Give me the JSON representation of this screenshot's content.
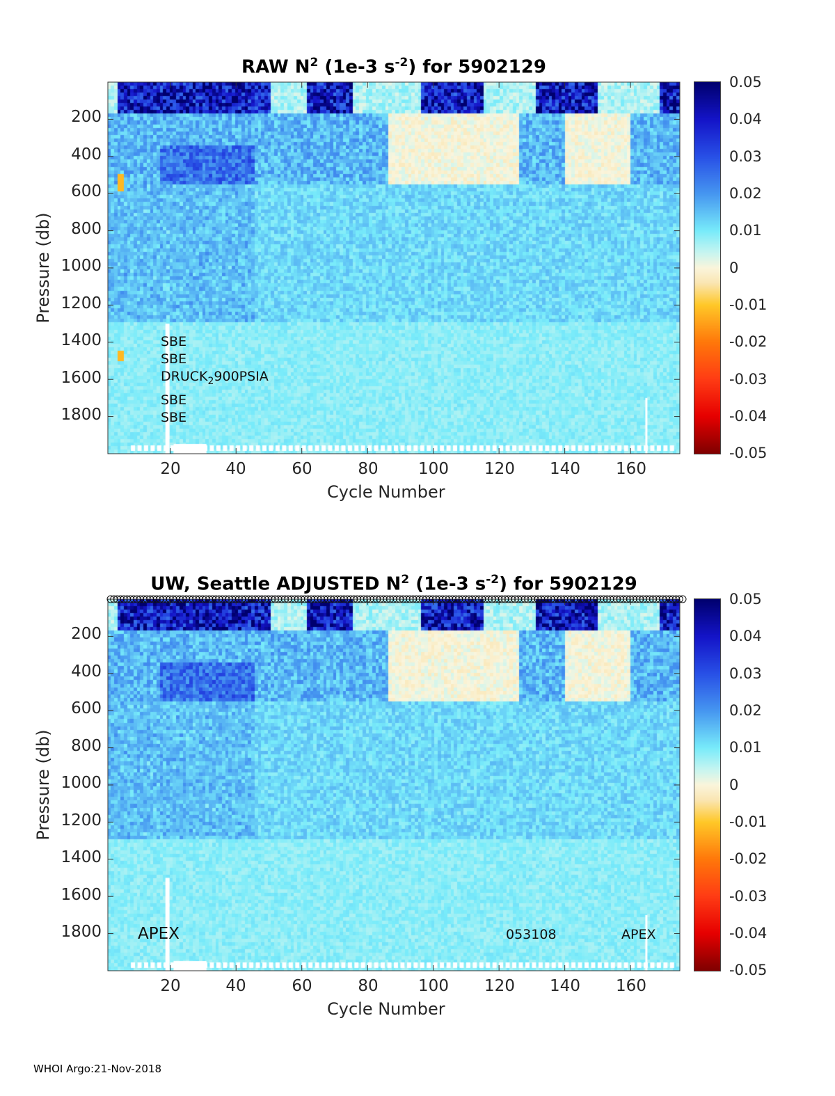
{
  "chart_data": [
    {
      "type": "heatmap",
      "title_main": "RAW N",
      "title_sup1": "2",
      "title_mid": " (1e-3 s",
      "title_sup2": "-2",
      "title_end": ") for 5902129",
      "xlabel": "Cycle Number",
      "ylabel": "Pressure (db)",
      "xlim": [
        1,
        175
      ],
      "ylim": [
        2000,
        0
      ],
      "xticks": [
        "20",
        "40",
        "60",
        "80",
        "100",
        "120",
        "140",
        "160"
      ],
      "yticks": [
        "200",
        "400",
        "600",
        "800",
        "1000",
        "1200",
        "1400",
        "1600",
        "1800"
      ],
      "colorbar_ticks": [
        "0.05",
        "0.04",
        "0.03",
        "0.02",
        "0.01",
        "0",
        "-0.01",
        "-0.02",
        "-0.03",
        "-0.04",
        "-0.05"
      ],
      "clim": [
        -0.05,
        0.05
      ],
      "annotations": [
        "SBE",
        "SBE",
        "DRUCK",
        "2",
        "900PSIA",
        "SBE",
        "SBE"
      ]
    },
    {
      "type": "heatmap",
      "title_main": "UW, Seattle  ADJUSTED N",
      "title_sup1": "2",
      "title_mid": " (1e-3 s",
      "title_sup2": "-2",
      "title_end": ") for 5902129",
      "xlabel": "Cycle Number",
      "ylabel": "Pressure (db)",
      "xlim": [
        1,
        175
      ],
      "ylim": [
        2000,
        0
      ],
      "xticks": [
        "20",
        "40",
        "60",
        "80",
        "100",
        "120",
        "140",
        "160"
      ],
      "yticks": [
        "200",
        "400",
        "600",
        "800",
        "1000",
        "1200",
        "1400",
        "1600",
        "1800"
      ],
      "colorbar_ticks": [
        "0.05",
        "0.04",
        "0.03",
        "0.02",
        "0.01",
        "0",
        "-0.01",
        "-0.02",
        "-0.03",
        "-0.04",
        "-0.05"
      ],
      "clim": [
        -0.05,
        0.05
      ],
      "annotations": [
        "APEX",
        "053108",
        "APEX"
      ]
    }
  ],
  "footer": "WHOI Argo:21-Nov-2018"
}
